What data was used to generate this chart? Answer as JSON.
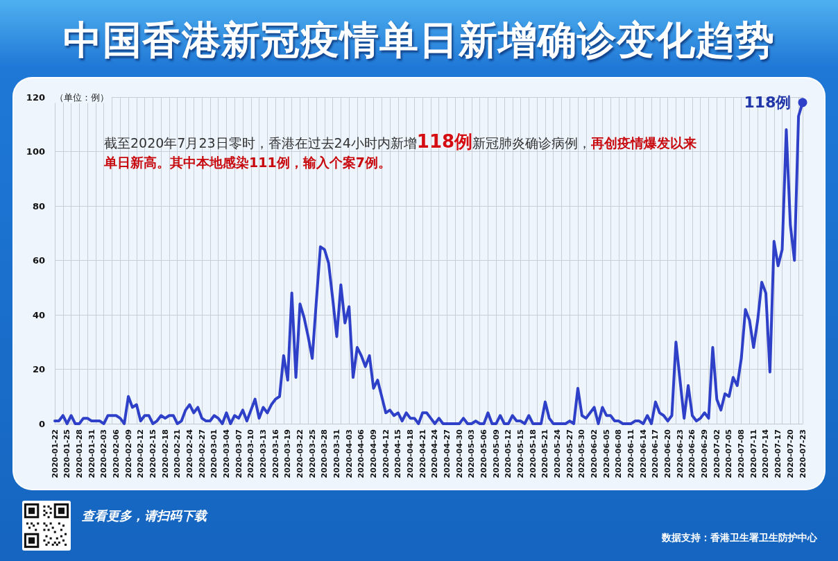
{
  "chart_data": {
    "type": "line",
    "title": "中国香港新冠疫情单日新增确诊变化趋势",
    "ylabel": "（单位：例）",
    "categories": [
      "2020-01-22",
      null,
      null,
      "2020-01-25",
      null,
      null,
      "2020-01-28",
      null,
      null,
      "2020-01-31",
      null,
      null,
      "2020-02-03",
      null,
      null,
      "2020-02-06",
      null,
      null,
      "2020-02-09",
      null,
      null,
      "2020-02-12",
      null,
      null,
      "2020-02-15",
      null,
      null,
      "2020-02-18",
      null,
      null,
      "2020-02-21",
      null,
      null,
      "2020-02-24",
      null,
      null,
      "2020-02-27",
      null,
      null,
      "2020-03-01",
      null,
      null,
      "2020-03-04",
      null,
      null,
      "2020-03-07",
      null,
      null,
      "2020-03-10",
      null,
      null,
      "2020-03-13",
      null,
      null,
      "2020-03-16",
      null,
      null,
      "2020-03-19",
      null,
      null,
      "2020-03-22",
      null,
      null,
      "2020-03-25",
      null,
      null,
      "2020-03-28",
      null,
      null,
      "2020-03-31",
      null,
      null,
      "2020-04-03",
      null,
      null,
      "2020-04-06",
      null,
      null,
      "2020-04-09",
      null,
      null,
      "2020-04-12",
      null,
      null,
      "2020-04-15",
      null,
      null,
      "2020-04-18",
      null,
      null,
      "2020-04-21",
      null,
      null,
      "2020-04-24",
      null,
      null,
      "2020-04-27",
      null,
      null,
      "2020-04-30",
      null,
      null,
      "2020-05-03",
      null,
      null,
      "2020-05-06",
      null,
      null,
      "2020-05-09",
      null,
      null,
      "2020-05-12",
      null,
      null,
      "2020-05-15",
      null,
      null,
      "2020-05-18",
      null,
      null,
      "2020-05-21",
      null,
      null,
      "2020-05-24",
      null,
      null,
      "2020-05-27",
      null,
      null,
      "2020-05-30",
      null,
      null,
      "2020-06-02",
      null,
      null,
      "2020-06-05",
      null,
      null,
      "2020-06-08",
      null,
      null,
      "2020-06-11",
      null,
      null,
      "2020-06-14",
      null,
      null,
      "2020-06-17",
      null,
      null,
      "2020-06-20",
      null,
      null,
      "2020-06-23",
      null,
      null,
      "2020-06-26",
      null,
      null,
      "2020-06-29",
      null,
      null,
      "2020-07-02",
      null,
      null,
      "2020-07-05",
      null,
      null,
      "2020-07-08",
      null,
      null,
      "2020-07-11",
      null,
      null,
      "2020-07-14",
      null,
      null,
      "2020-07-17",
      null,
      null,
      "2020-07-20",
      null,
      null,
      "2020-07-23"
    ],
    "values": [
      1,
      1,
      3,
      0,
      3,
      0,
      0,
      2,
      2,
      1,
      1,
      1,
      0,
      3,
      3,
      3,
      2,
      0,
      10,
      6,
      7,
      1,
      3,
      3,
      0,
      1,
      3,
      2,
      3,
      3,
      0,
      1,
      5,
      7,
      4,
      6,
      2,
      1,
      1,
      3,
      2,
      0,
      4,
      0,
      3,
      2,
      5,
      1,
      5,
      9,
      2,
      6,
      4,
      7,
      9,
      10,
      25,
      16,
      48,
      17,
      44,
      39,
      32,
      24,
      45,
      65,
      64,
      59,
      46,
      32,
      51,
      37,
      43,
      17,
      28,
      25,
      21,
      25,
      13,
      16,
      10,
      4,
      5,
      3,
      4,
      1,
      4,
      2,
      2,
      0,
      4,
      4,
      2,
      0,
      2,
      0,
      0,
      0,
      0,
      0,
      2,
      0,
      0,
      1,
      0,
      0,
      4,
      0,
      0,
      3,
      0,
      0,
      3,
      1,
      1,
      0,
      3,
      0,
      0,
      0,
      8,
      2,
      0,
      0,
      0,
      0,
      1,
      0,
      13,
      3,
      2,
      4,
      6,
      0,
      6,
      3,
      3,
      1,
      1,
      0,
      0,
      0,
      1,
      1,
      0,
      3,
      0,
      8,
      4,
      3,
      1,
      3,
      30,
      16,
      2,
      14,
      3,
      1,
      2,
      4,
      2,
      28,
      9,
      5,
      11,
      10,
      17,
      14,
      24,
      42,
      38,
      28,
      38,
      52,
      48,
      19,
      67,
      58,
      64,
      108,
      73,
      60,
      113,
      118
    ],
    "value_labels": [
      null,
      null,
      null,
      null,
      null,
      null,
      null,
      null,
      null,
      null,
      null,
      null,
      null,
      null,
      null,
      null,
      null,
      null,
      null,
      null,
      null,
      null,
      null,
      null,
      null,
      null,
      null,
      null,
      null,
      null,
      null,
      null,
      null,
      null,
      null,
      null,
      null,
      null,
      null,
      null,
      null,
      null,
      null,
      null,
      null,
      null,
      null,
      null,
      null,
      null,
      null,
      null,
      null,
      null,
      null,
      null,
      null,
      null,
      null,
      null,
      null,
      null,
      null,
      null,
      null,
      null,
      null,
      null,
      null,
      null,
      null,
      null,
      null,
      null,
      null,
      null,
      null,
      null,
      null,
      null,
      null,
      null,
      null,
      null,
      null,
      null,
      null,
      null,
      null,
      null,
      null,
      null,
      null,
      null,
      null,
      null,
      null,
      null,
      null,
      null,
      null,
      null,
      null,
      null,
      null,
      null,
      null,
      null,
      null,
      null,
      null,
      null,
      null,
      null,
      null,
      null,
      null,
      null,
      null,
      null,
      null,
      null,
      null,
      null,
      null,
      null,
      null,
      null,
      null,
      null,
      null,
      null,
      null,
      null,
      null,
      null,
      null,
      null,
      null,
      null,
      null,
      null,
      null,
      null,
      null,
      null,
      null,
      null,
      null,
      null,
      null,
      null,
      null,
      null,
      null,
      null,
      null,
      null,
      null,
      null,
      null,
      null,
      null,
      null,
      null,
      null,
      null,
      null,
      null,
      null,
      null,
      null,
      null,
      null,
      null,
      null,
      null,
      null,
      null,
      null,
      null,
      null,
      null,
      "118例"
    ],
    "color": "#2e40c8",
    "marker": "none",
    "line_style": "solid",
    "ylim": [
      0,
      120
    ],
    "yticks": [
      0,
      20,
      40,
      60,
      80,
      100,
      120
    ],
    "grid": true,
    "annotations": [
      "截至2020年7月23日零时，香港在过去24小时内新增",
      "118例",
      "新冠肺炎确诊病例，",
      "再创疫情爆发以来",
      "单日新高。其中本地感染111例，输入个案7例。",
      "查看更多，请扫码下载",
      "数据支持：香港卫生署卫生防护中心"
    ]
  }
}
